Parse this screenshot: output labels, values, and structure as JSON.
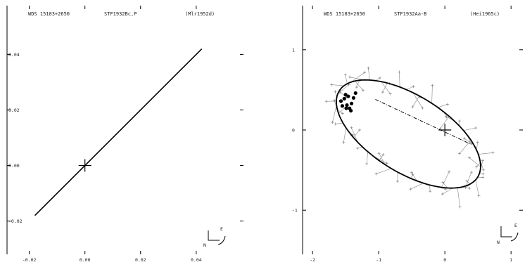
{
  "chart_data": [
    {
      "type": "line",
      "header": {
        "wds": "WDS 15183+2650",
        "name": "STF1932Bc,P",
        "ref": "(Mlr1952d)"
      },
      "x_ticks": [
        "-0.02",
        "0.00",
        "0.02",
        "0.04"
      ],
      "y_ticks": [
        "0.04",
        "0.02",
        "0.00",
        "-0.02"
      ],
      "xlim": [
        -0.028,
        0.058
      ],
      "ylim": [
        -0.032,
        0.052
      ],
      "line": {
        "x": [
          -0.018,
          0.042
        ],
        "y": [
          -0.018,
          0.042
        ]
      },
      "primary": [
        0.0,
        0.0
      ],
      "compass": {
        "e": "E",
        "n": "N"
      }
    },
    {
      "type": "scatter",
      "header": {
        "wds": "WDS 15183+2650",
        "name": "STF1932Aa-B",
        "ref": "(Hei1965c)"
      },
      "x_ticks": [
        "-2",
        "-1",
        "0",
        "1"
      ],
      "y_ticks": [
        "1",
        "0",
        "-1"
      ],
      "xlim": [
        -2.15,
        1.2
      ],
      "ylim": [
        -1.55,
        1.55
      ],
      "ellipse": {
        "cx": -0.55,
        "cy": -0.05,
        "a": 1.18,
        "b": 0.5,
        "angle_deg": -25
      },
      "line_of_nodes": {
        "x": [
          -1.05,
          0.4
        ],
        "y": [
          0.38,
          -0.18
        ]
      },
      "primary": [
        0.0,
        0.0
      ],
      "observations": [
        [
          -1.57,
          0.36
        ],
        [
          -1.52,
          0.39
        ],
        [
          -1.48,
          0.31
        ],
        [
          -1.44,
          0.27
        ],
        [
          -1.41,
          0.33
        ],
        [
          -1.5,
          0.44
        ],
        [
          -1.46,
          0.42
        ],
        [
          -1.38,
          0.4
        ],
        [
          -1.35,
          0.46
        ],
        [
          -1.55,
          0.3
        ],
        [
          -1.42,
          0.24
        ],
        [
          -1.49,
          0.27
        ]
      ],
      "compass": {
        "e": "E",
        "n": "N"
      }
    }
  ]
}
